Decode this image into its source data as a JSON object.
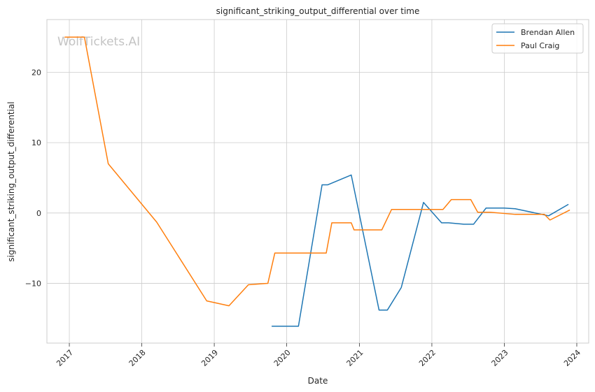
{
  "chart_data": {
    "type": "line",
    "title": "significant_striking_output_differential over time",
    "xlabel": "Date",
    "ylabel": "significant_striking_output_differential",
    "watermark": "WolfTickets.AI",
    "x_ticks": [
      "2017",
      "2018",
      "2019",
      "2020",
      "2021",
      "2022",
      "2023",
      "2024"
    ],
    "y_ticks": [
      -10,
      0,
      10,
      20
    ],
    "y_tick_labels": [
      "−10",
      "0",
      "10",
      "20"
    ],
    "xlim": [
      "2016-09-10",
      "2024-03-01"
    ],
    "ylim": [
      -18.5,
      27.5
    ],
    "grid": true,
    "legend_position": "top-right",
    "series": [
      {
        "name": "Brendan Allen",
        "color": "#1f77b4",
        "points": [
          [
            "2019-10-19",
            -16.1
          ],
          [
            "2020-02-29",
            -16.1
          ],
          [
            "2020-06-27",
            4.0
          ],
          [
            "2020-07-25",
            4.0
          ],
          [
            "2020-11-21",
            5.4
          ],
          [
            "2021-04-10",
            -13.8
          ],
          [
            "2021-05-22",
            -13.8
          ],
          [
            "2021-07-31",
            -10.6
          ],
          [
            "2021-11-20",
            1.5
          ],
          [
            "2022-02-19",
            -1.4
          ],
          [
            "2022-03-26",
            -1.4
          ],
          [
            "2022-06-11",
            -1.6
          ],
          [
            "2022-07-30",
            -1.6
          ],
          [
            "2022-10-01",
            0.7
          ],
          [
            "2022-12-31",
            0.7
          ],
          [
            "2023-02-25",
            0.6
          ],
          [
            "2023-08-12",
            -0.4
          ],
          [
            "2023-11-18",
            1.2
          ]
        ]
      },
      {
        "name": "Paul Craig",
        "color": "#ff7f0e",
        "points": [
          [
            "2016-12-10",
            25.0
          ],
          [
            "2017-03-18",
            25.0
          ],
          [
            "2017-07-16",
            7.0
          ],
          [
            "2018-03-17",
            -1.3
          ],
          [
            "2018-11-24",
            -12.5
          ],
          [
            "2019-03-16",
            -13.2
          ],
          [
            "2019-06-22",
            -10.2
          ],
          [
            "2019-09-28",
            -10.0
          ],
          [
            "2019-11-02",
            -5.7
          ],
          [
            "2020-07-18",
            -5.7
          ],
          [
            "2020-08-15",
            -1.4
          ],
          [
            "2020-11-21",
            -1.4
          ],
          [
            "2020-12-05",
            -2.4
          ],
          [
            "2021-04-24",
            -2.4
          ],
          [
            "2021-06-12",
            0.5
          ],
          [
            "2022-02-26",
            0.5
          ],
          [
            "2022-04-09",
            1.9
          ],
          [
            "2022-07-16",
            1.9
          ],
          [
            "2022-08-20",
            0.1
          ],
          [
            "2022-10-22",
            0.1
          ],
          [
            "2023-02-25",
            -0.2
          ],
          [
            "2023-07-22",
            -0.2
          ],
          [
            "2023-08-19",
            -1.0
          ],
          [
            "2023-11-25",
            0.4
          ]
        ]
      }
    ]
  }
}
